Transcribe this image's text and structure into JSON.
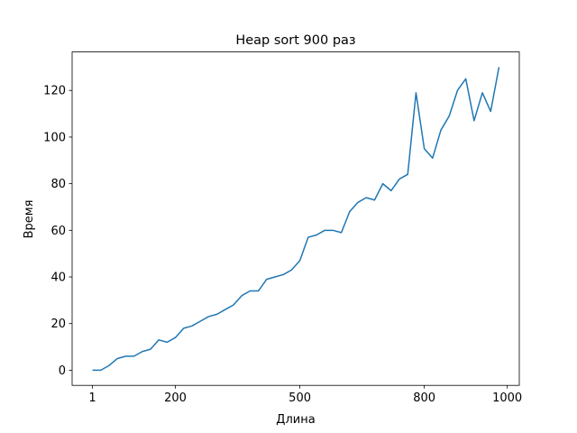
{
  "chart_data": {
    "type": "line",
    "title": "Heap sort 900 раз",
    "x_label": "Длина",
    "y_label": "Время",
    "x": [
      0,
      1,
      2,
      3,
      4,
      5,
      6,
      7,
      8,
      9,
      10,
      11,
      12,
      13,
      14,
      15,
      16,
      17,
      18,
      19,
      20,
      21,
      22,
      23,
      24,
      25,
      26,
      27,
      28,
      29,
      30,
      31,
      32,
      33,
      34,
      35,
      36,
      37,
      38,
      39,
      40,
      41,
      42,
      43,
      44,
      45,
      46,
      47,
      48,
      49
    ],
    "series": [
      {
        "name": "Heap sort",
        "color": "#1f77b4",
        "values": [
          0,
          0,
          2,
          5,
          6,
          6,
          8,
          9,
          13,
          12,
          14,
          18,
          19,
          21,
          23,
          24,
          26,
          28,
          32,
          34,
          34,
          39,
          40,
          41,
          43,
          47,
          57,
          58,
          60,
          60,
          59,
          68,
          72,
          74,
          73,
          80,
          77,
          82,
          84,
          119,
          95,
          91,
          103,
          109,
          120,
          125,
          107,
          119,
          111,
          130
        ]
      }
    ],
    "xlim": [
      -2.45,
      51.45
    ],
    "xticks": [
      {
        "value": 0,
        "label": "1"
      },
      {
        "value": 10,
        "label": "200"
      },
      {
        "value": 25,
        "label": "500"
      },
      {
        "value": 40,
        "label": "800"
      },
      {
        "value": 50,
        "label": "1000"
      }
    ],
    "ylim": [
      -6.5,
      136.5
    ],
    "yticks": [
      0,
      20,
      40,
      60,
      80,
      100,
      120
    ]
  }
}
